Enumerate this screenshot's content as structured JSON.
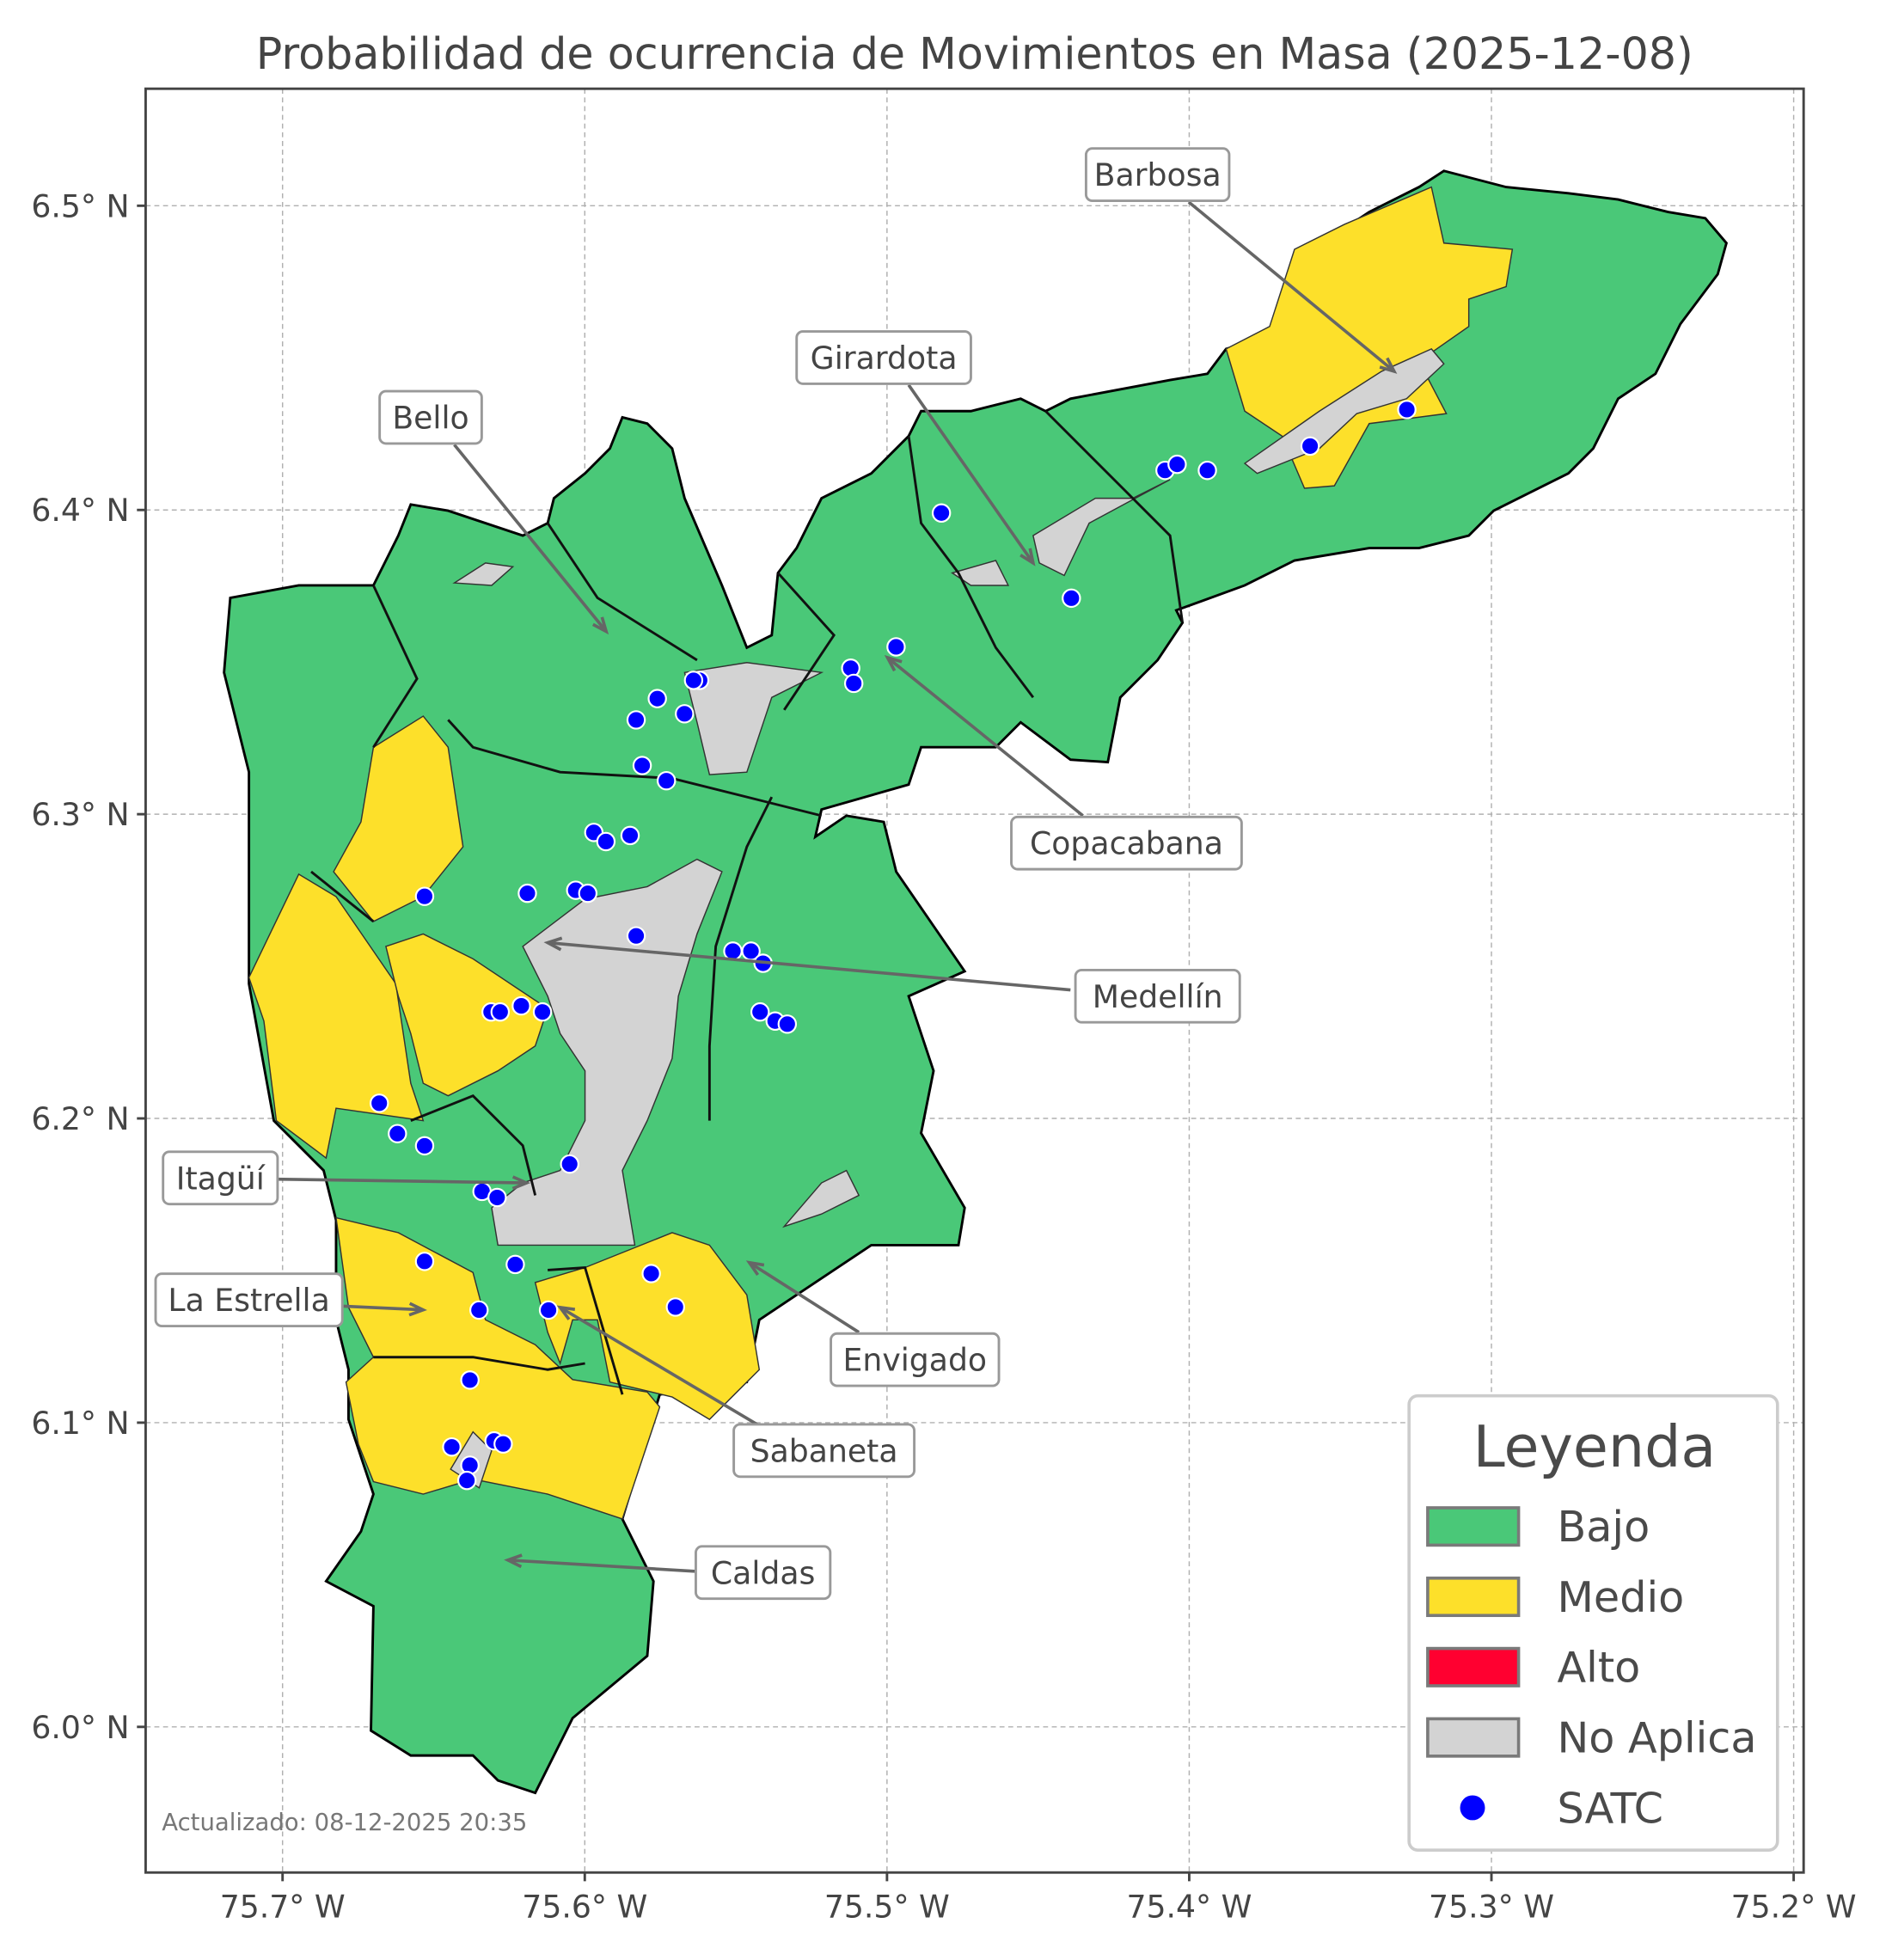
{
  "title": "Probabilidad de ocurrencia de Movimientos en Masa (2025-12-08)",
  "footer": "Actualizado: 08-12-2025 20:35",
  "axes": {
    "x_ticks": [
      "75.7° W",
      "75.6° W",
      "75.5° W",
      "75.4° W",
      "75.3° W",
      "75.2° W"
    ],
    "x_values": [
      -75.7,
      -75.6,
      -75.5,
      -75.4,
      -75.3,
      -75.2
    ],
    "y_ticks": [
      "6.5° N",
      "6.4° N",
      "6.3° N",
      "6.2° N",
      "6.1° N",
      "6.0° N"
    ],
    "y_values": [
      6.5,
      6.4,
      6.3,
      6.2,
      6.1,
      6.0
    ],
    "xlim": [
      -75.745,
      -75.196
    ],
    "ylim": [
      5.953,
      6.54
    ],
    "grid": true
  },
  "legend": {
    "title": "Leyenda",
    "placement": "bottom-right",
    "items": [
      {
        "label": "Bajo",
        "color": "#4ac878",
        "kind": "patch"
      },
      {
        "label": "Medio",
        "color": "#fde02a",
        "kind": "patch"
      },
      {
        "label": "Alto",
        "color": "#ff0030",
        "kind": "patch"
      },
      {
        "label": "No Aplica",
        "color": "#d3d3d3",
        "kind": "patch"
      },
      {
        "label": "SATC",
        "color": "#0000ff",
        "kind": "point"
      }
    ]
  },
  "municipalities": [
    "Barbosa",
    "Girardota",
    "Bello",
    "Copacabana",
    "Medellín",
    "Itagüí",
    "La Estrella",
    "Envigado",
    "Sabaneta",
    "Caldas"
  ],
  "satc_stations": [
    [
      -75.328,
      6.433
    ],
    [
      -75.36,
      6.421
    ],
    [
      -75.408,
      6.413
    ],
    [
      -75.404,
      6.415
    ],
    [
      -75.394,
      6.413
    ],
    [
      -75.482,
      6.399
    ],
    [
      -75.439,
      6.371
    ],
    [
      -75.497,
      6.355
    ],
    [
      -75.512,
      6.348
    ],
    [
      -75.511,
      6.343
    ],
    [
      -75.562,
      6.344
    ],
    [
      -75.564,
      6.344
    ],
    [
      -75.576,
      6.338
    ],
    [
      -75.583,
      6.331
    ],
    [
      -75.567,
      6.333
    ],
    [
      -75.581,
      6.316
    ],
    [
      -75.573,
      6.311
    ],
    [
      -75.597,
      6.294
    ],
    [
      -75.585,
      6.293
    ],
    [
      -75.593,
      6.291
    ],
    [
      -75.619,
      6.274
    ],
    [
      -75.653,
      6.273
    ],
    [
      -75.603,
      6.275
    ],
    [
      -75.599,
      6.274
    ],
    [
      -75.583,
      6.26
    ],
    [
      -75.551,
      6.255
    ],
    [
      -75.545,
      6.255
    ],
    [
      -75.541,
      6.251
    ],
    [
      -75.542,
      6.235
    ],
    [
      -75.537,
      6.232
    ],
    [
      -75.533,
      6.231
    ],
    [
      -75.631,
      6.235
    ],
    [
      -75.628,
      6.235
    ],
    [
      -75.621,
      6.237
    ],
    [
      -75.614,
      6.235
    ],
    [
      -75.668,
      6.205
    ],
    [
      -75.662,
      6.195
    ],
    [
      -75.653,
      6.191
    ],
    [
      -75.605,
      6.185
    ],
    [
      -75.634,
      6.176
    ],
    [
      -75.629,
      6.174
    ],
    [
      -75.623,
      6.152
    ],
    [
      -75.653,
      6.153
    ],
    [
      -75.578,
      6.149
    ],
    [
      -75.57,
      6.138
    ],
    [
      -75.635,
      6.137
    ],
    [
      -75.612,
      6.137
    ],
    [
      -75.638,
      6.114
    ],
    [
      -75.63,
      6.094
    ],
    [
      -75.627,
      6.093
    ],
    [
      -75.644,
      6.092
    ],
    [
      -75.638,
      6.086
    ],
    [
      -75.639,
      6.081
    ]
  ]
}
